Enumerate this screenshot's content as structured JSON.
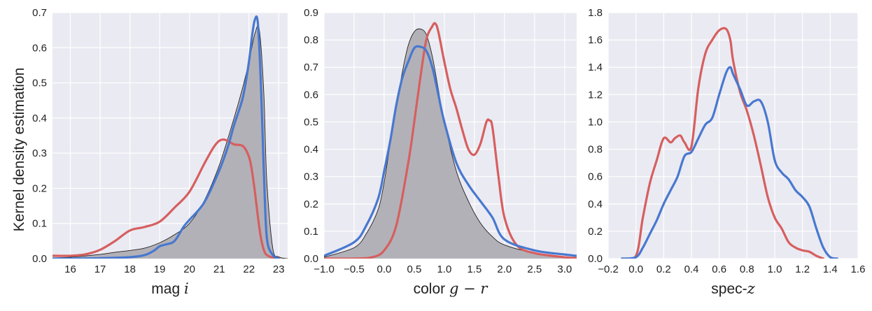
{
  "figure": {
    "ylabel": "Kernel density estimation"
  },
  "colors": {
    "panel_bg": "#eaeaf2",
    "grid": "#ffffff",
    "fill_gray": "#b3b1b8",
    "fill_edge": "#222222",
    "red": "#d65f5f",
    "blue": "#4878cf"
  },
  "chart_data": [
    {
      "type": "area",
      "xlabel_text": "mag ",
      "xlabel_math": "i",
      "xlim": [
        15.4,
        23.3
      ],
      "ylim": [
        0,
        0.7
      ],
      "xticks": [
        16,
        17,
        18,
        19,
        20,
        21,
        22,
        23
      ],
      "yticks": [
        0.0,
        0.1,
        0.2,
        0.3,
        0.4,
        0.5,
        0.6,
        0.7
      ],
      "xtick_labels": [
        "16",
        "17",
        "18",
        "19",
        "20",
        "21",
        "22",
        "23"
      ],
      "ytick_labels": [
        "0.0",
        "0.1",
        "0.2",
        "0.3",
        "0.4",
        "0.5",
        "0.6",
        "0.7"
      ],
      "grid": true,
      "series": [
        {
          "style": "filled-gray",
          "x": [
            15.4,
            16.0,
            17.0,
            17.5,
            18.0,
            18.5,
            19.0,
            19.5,
            20.0,
            20.5,
            21.0,
            21.5,
            21.8,
            22.0,
            22.2,
            22.35,
            22.5,
            22.6,
            22.8,
            23.0,
            23.3
          ],
          "y": [
            0.002,
            0.004,
            0.012,
            0.018,
            0.023,
            0.03,
            0.045,
            0.068,
            0.1,
            0.165,
            0.265,
            0.4,
            0.49,
            0.56,
            0.64,
            0.65,
            0.47,
            0.22,
            0.03,
            0.005,
            0.0
          ]
        },
        {
          "style": "red-line",
          "x": [
            15.4,
            16.0,
            16.5,
            17.0,
            17.5,
            18.0,
            18.5,
            19.0,
            19.5,
            20.0,
            20.5,
            20.8,
            21.0,
            21.2,
            21.5,
            21.8,
            22.0,
            22.1,
            22.2,
            22.3,
            22.4,
            22.5,
            22.6,
            22.8,
            23.0
          ],
          "y": [
            0.008,
            0.008,
            0.012,
            0.025,
            0.05,
            0.08,
            0.09,
            0.105,
            0.145,
            0.19,
            0.27,
            0.315,
            0.335,
            0.338,
            0.325,
            0.32,
            0.29,
            0.25,
            0.19,
            0.12,
            0.06,
            0.025,
            0.01,
            0.003,
            0.001
          ]
        },
        {
          "style": "blue-line",
          "x": [
            15.4,
            16.0,
            17.0,
            18.0,
            18.5,
            18.8,
            19.0,
            19.2,
            19.5,
            19.8,
            20.0,
            20.5,
            21.0,
            21.3,
            21.5,
            21.8,
            22.0,
            22.1,
            22.2,
            22.3,
            22.4,
            22.5,
            22.6,
            22.8,
            23.0
          ],
          "y": [
            0.0,
            0.0,
            0.001,
            0.004,
            0.01,
            0.022,
            0.035,
            0.04,
            0.05,
            0.09,
            0.11,
            0.16,
            0.25,
            0.32,
            0.38,
            0.46,
            0.56,
            0.63,
            0.68,
            0.67,
            0.5,
            0.25,
            0.06,
            0.01,
            0.0
          ]
        }
      ]
    },
    {
      "type": "area",
      "xlabel_text": "color ",
      "xlabel_math": "g − r",
      "xlim": [
        -1.0,
        3.2
      ],
      "ylim": [
        0,
        0.9
      ],
      "xticks": [
        -1.0,
        -0.5,
        0.0,
        0.5,
        1.0,
        1.5,
        2.0,
        2.5,
        3.0
      ],
      "yticks": [
        0.0,
        0.1,
        0.2,
        0.3,
        0.4,
        0.5,
        0.6,
        0.7,
        0.8,
        0.9
      ],
      "xtick_labels": [
        "−1.0",
        "−0.5",
        "0.0",
        "0.5",
        "1.0",
        "1.5",
        "2.0",
        "2.5",
        "3.0"
      ],
      "ytick_labels": [
        "0.0",
        "0.1",
        "0.2",
        "0.3",
        "0.4",
        "0.5",
        "0.6",
        "0.7",
        "0.8",
        "0.9"
      ],
      "grid": true,
      "series": [
        {
          "style": "filled-gray",
          "x": [
            -1.0,
            -0.5,
            -0.3,
            -0.1,
            0.0,
            0.1,
            0.2,
            0.3,
            0.4,
            0.5,
            0.6,
            0.7,
            0.8,
            0.9,
            1.0,
            1.2,
            1.4,
            1.6,
            1.8,
            2.0,
            2.5,
            3.0,
            3.2
          ],
          "y": [
            0.005,
            0.04,
            0.09,
            0.18,
            0.28,
            0.42,
            0.55,
            0.68,
            0.78,
            0.83,
            0.84,
            0.82,
            0.74,
            0.62,
            0.5,
            0.32,
            0.21,
            0.13,
            0.08,
            0.05,
            0.02,
            0.005,
            0.002
          ]
        },
        {
          "style": "red-line",
          "x": [
            -1.0,
            -0.5,
            -0.2,
            0.0,
            0.2,
            0.4,
            0.5,
            0.6,
            0.7,
            0.8,
            0.85,
            0.9,
            1.0,
            1.1,
            1.2,
            1.3,
            1.4,
            1.5,
            1.6,
            1.7,
            1.75,
            1.8,
            1.9,
            2.0,
            2.2,
            2.5,
            3.0,
            3.2
          ],
          "y": [
            0.0,
            0.0,
            0.005,
            0.03,
            0.12,
            0.35,
            0.5,
            0.66,
            0.8,
            0.85,
            0.86,
            0.83,
            0.72,
            0.62,
            0.55,
            0.47,
            0.4,
            0.38,
            0.42,
            0.5,
            0.505,
            0.48,
            0.3,
            0.15,
            0.05,
            0.02,
            0.005,
            0.002
          ]
        },
        {
          "style": "blue-line",
          "x": [
            -1.0,
            -0.5,
            -0.3,
            -0.1,
            0.0,
            0.1,
            0.2,
            0.3,
            0.4,
            0.5,
            0.6,
            0.7,
            0.8,
            0.9,
            1.0,
            1.2,
            1.4,
            1.6,
            1.8,
            2.0,
            2.5,
            3.0,
            3.2
          ],
          "y": [
            0.01,
            0.06,
            0.12,
            0.22,
            0.32,
            0.43,
            0.56,
            0.66,
            0.72,
            0.77,
            0.775,
            0.76,
            0.7,
            0.6,
            0.5,
            0.35,
            0.27,
            0.21,
            0.15,
            0.07,
            0.03,
            0.015,
            0.01
          ]
        }
      ]
    },
    {
      "type": "line",
      "xlabel_text": "spec-",
      "xlabel_math": "z",
      "xlim": [
        -0.2,
        1.6
      ],
      "ylim": [
        0,
        1.8
      ],
      "xticks": [
        -0.2,
        0.0,
        0.2,
        0.4,
        0.6,
        0.8,
        1.0,
        1.2,
        1.4,
        1.6
      ],
      "yticks": [
        0.0,
        0.2,
        0.4,
        0.6,
        0.8,
        1.0,
        1.2,
        1.4,
        1.6,
        1.8
      ],
      "xtick_labels": [
        "−0.2",
        "0.0",
        "0.2",
        "0.4",
        "0.6",
        "0.8",
        "1.0",
        "1.2",
        "1.4",
        "1.6"
      ],
      "ytick_labels": [
        "0.0",
        "0.2",
        "0.4",
        "0.6",
        "0.8",
        "1.0",
        "1.2",
        "1.4",
        "1.6",
        "1.8"
      ],
      "grid": true,
      "series": [
        {
          "style": "red-line",
          "x": [
            -0.1,
            0.0,
            0.05,
            0.1,
            0.15,
            0.2,
            0.25,
            0.28,
            0.32,
            0.35,
            0.4,
            0.45,
            0.5,
            0.55,
            0.6,
            0.65,
            0.68,
            0.7,
            0.75,
            0.8,
            0.85,
            0.9,
            0.95,
            1.0,
            1.05,
            1.1,
            1.15,
            1.2,
            1.25,
            1.3,
            1.35
          ],
          "y": [
            0.0,
            0.02,
            0.3,
            0.55,
            0.72,
            0.88,
            0.85,
            0.88,
            0.9,
            0.85,
            0.82,
            1.25,
            1.5,
            1.6,
            1.67,
            1.68,
            1.6,
            1.45,
            1.22,
            1.08,
            0.9,
            0.68,
            0.45,
            0.3,
            0.22,
            0.12,
            0.08,
            0.06,
            0.05,
            0.02,
            0.0
          ]
        },
        {
          "style": "blue-line",
          "x": [
            -0.1,
            0.0,
            0.05,
            0.1,
            0.15,
            0.2,
            0.25,
            0.3,
            0.35,
            0.4,
            0.45,
            0.5,
            0.55,
            0.6,
            0.65,
            0.68,
            0.7,
            0.75,
            0.8,
            0.85,
            0.9,
            0.95,
            1.0,
            1.05,
            1.1,
            1.15,
            1.2,
            1.25,
            1.3,
            1.35,
            1.4,
            1.45
          ],
          "y": [
            0.0,
            0.01,
            0.08,
            0.18,
            0.28,
            0.4,
            0.5,
            0.6,
            0.75,
            0.78,
            0.88,
            0.98,
            1.03,
            1.2,
            1.36,
            1.4,
            1.35,
            1.24,
            1.12,
            1.15,
            1.15,
            1.0,
            0.72,
            0.63,
            0.58,
            0.5,
            0.45,
            0.38,
            0.22,
            0.08,
            0.01,
            0.0
          ]
        }
      ]
    }
  ]
}
